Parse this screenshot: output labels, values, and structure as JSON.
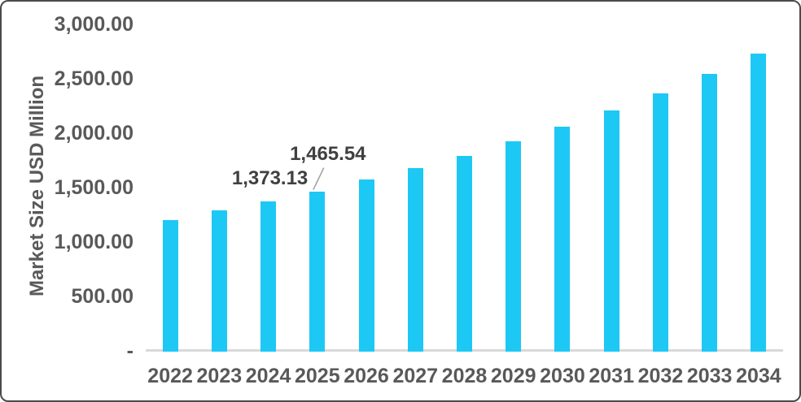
{
  "chart_data": {
    "type": "bar",
    "title": "",
    "xlabel": "",
    "ylabel": "Market Size USD Million",
    "categories": [
      "2022",
      "2023",
      "2024",
      "2025",
      "2026",
      "2027",
      "2028",
      "2029",
      "2030",
      "2031",
      "2032",
      "2033",
      "2034"
    ],
    "series": [
      {
        "name": "Market Size USD Million",
        "values": [
          1200,
          1290,
          1373.13,
          1465.54,
          1575,
          1680,
          1790,
          1925,
          2060,
          2210,
          2365,
          2545,
          2730
        ]
      }
    ],
    "labeled_points": [
      {
        "category": "2024",
        "value": 1373.13,
        "label": "1,373.13",
        "leader_line": false
      },
      {
        "category": "2025",
        "value": 1465.54,
        "label": "1,465.54",
        "leader_line": true
      }
    ],
    "ylim": [
      0,
      3000
    ],
    "y_ticks": [
      {
        "value": 3000,
        "label": "3,000.00"
      },
      {
        "value": 2500,
        "label": "2,500.00"
      },
      {
        "value": 2000,
        "label": "2,000.00"
      },
      {
        "value": 1500,
        "label": "1,500.00"
      },
      {
        "value": 1000,
        "label": "1,000.00"
      },
      {
        "value": 500,
        "label": "500.00"
      },
      {
        "value": 0,
        "label": "-"
      }
    ],
    "grid": false,
    "legend_position": "none",
    "colors": {
      "bar": "#1DC8F4",
      "axis_line": "#D9D9D9",
      "axis_text": "#595959",
      "data_label_text": "#404040",
      "leader_line": "#A0A0A0",
      "frame_border": "#4A4A4A",
      "background": "#FFFFFF"
    }
  }
}
